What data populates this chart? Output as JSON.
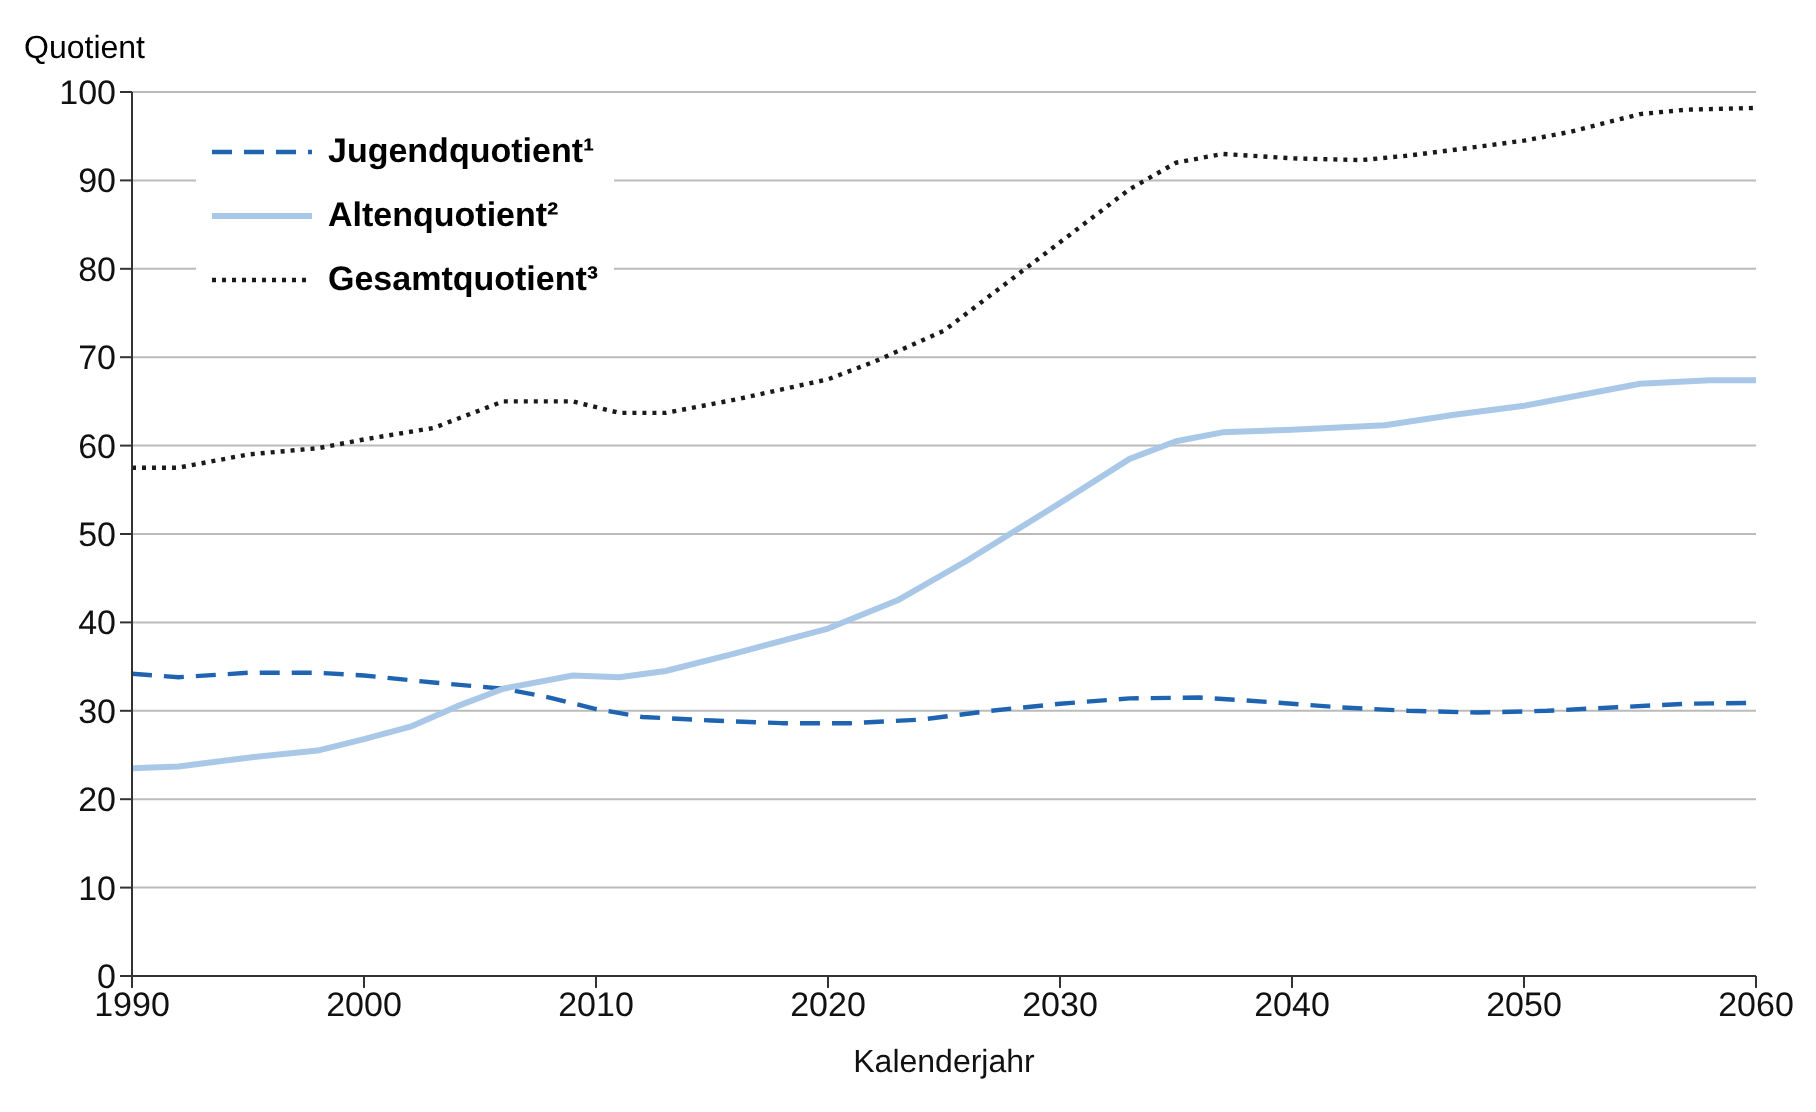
{
  "chart_data": {
    "type": "line",
    "xlabel": "Kalenderjahr",
    "ylabel": "Quotient",
    "xlim": [
      1990,
      2060
    ],
    "xticks": [
      1990,
      2000,
      2010,
      2020,
      2030,
      2040,
      2050,
      2060
    ],
    "ylim": [
      0,
      100
    ],
    "yticks": [
      0,
      10,
      20,
      30,
      40,
      50,
      60,
      70,
      80,
      90,
      100
    ],
    "grid": "y",
    "legend": "top left",
    "marker": "none",
    "series": [
      {
        "name": "Jugendquotient¹",
        "color": "#1f64b0",
        "line_style": "dashed",
        "x": [
          1990,
          1992,
          1995,
          1998,
          2000,
          2003,
          2006,
          2008,
          2010,
          2012,
          2015,
          2018,
          2021,
          2024,
          2027,
          2030,
          2033,
          2036,
          2039,
          2042,
          2045,
          2048,
          2051,
          2054,
          2057,
          2060
        ],
        "values": [
          34.2,
          33.8,
          34.3,
          34.3,
          34,
          33.2,
          32.5,
          31.5,
          30.2,
          29.3,
          28.9,
          28.6,
          28.6,
          29,
          30,
          30.8,
          31.4,
          31.5,
          31,
          30.4,
          30,
          29.8,
          30,
          30.4,
          30.8,
          30.9
        ]
      },
      {
        "name": "Altenquotient²",
        "color": "#a9c8e8",
        "line_style": "solid",
        "x": [
          1990,
          1992,
          1995,
          1998,
          2000,
          2002,
          2004,
          2006,
          2009,
          2011,
          2013,
          2016,
          2020,
          2023,
          2026,
          2030,
          2033,
          2035,
          2037,
          2040,
          2044,
          2047,
          2050,
          2052,
          2055,
          2058,
          2060
        ],
        "values": [
          23.5,
          23.7,
          24.7,
          25.5,
          26.8,
          28.2,
          30.5,
          32.5,
          34,
          33.8,
          34.5,
          36.5,
          39.3,
          42.5,
          47,
          53.5,
          58.5,
          60.5,
          61.5,
          61.8,
          62.3,
          63.5,
          64.5,
          65.5,
          67,
          67.4,
          67.4
        ]
      },
      {
        "name": "Gesamtquotient³",
        "color": "#1a1a1a",
        "line_style": "dotted",
        "x": [
          1990,
          1992,
          1995,
          1998,
          2000,
          2003,
          2005,
          2006,
          2009,
          2011,
          2013,
          2016,
          2020,
          2022,
          2025,
          2028,
          2030,
          2033,
          2035,
          2037,
          2040,
          2043,
          2045,
          2048,
          2050,
          2052,
          2055,
          2057,
          2060
        ],
        "values": [
          57.5,
          57.5,
          59,
          59.7,
          60.7,
          62,
          64,
          65,
          65,
          63.7,
          63.7,
          65.2,
          67.5,
          69.5,
          73,
          79,
          83,
          89,
          92,
          93,
          92.5,
          92.3,
          92.8,
          93.8,
          94.5,
          95.5,
          97.5,
          98,
          98.2
        ]
      }
    ]
  }
}
